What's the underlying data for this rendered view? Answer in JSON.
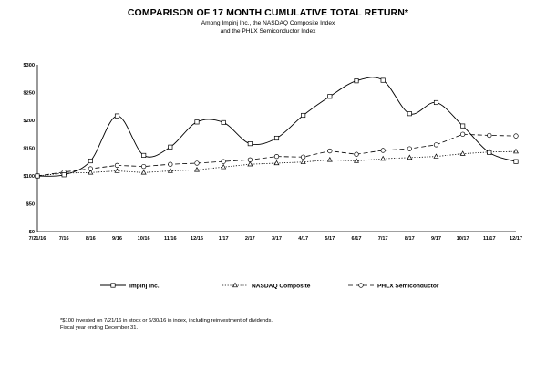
{
  "header": {
    "title": "COMPARISON OF 17 MONTH CUMULATIVE TOTAL RETURN*",
    "subtitle_line1": "Among Impinj Inc., the NASDAQ Composite Index",
    "subtitle_line2": "and the PHLX Semiconductor Index"
  },
  "footnote": {
    "line1": "*$100 invested on 7/21/16 in stock or 6/30/16 in index, including reinvestment of dividends.",
    "line2": "Fiscal year ending December 31."
  },
  "chart_data": {
    "type": "line",
    "title": "COMPARISON OF 17 MONTH CUMULATIVE TOTAL RETURN*",
    "categories": [
      "7/21/16",
      "7/16",
      "8/16",
      "9/16",
      "10/16",
      "11/16",
      "12/16",
      "1/17",
      "2/17",
      "3/17",
      "4/17",
      "5/17",
      "6/17",
      "7/17",
      "8/17",
      "9/17",
      "10/17",
      "11/17",
      "12/17"
    ],
    "y_tick_labels": [
      "$0",
      "$50",
      "$100",
      "$150",
      "$200",
      "$250",
      "$300"
    ],
    "ylim": [
      0,
      300
    ],
    "grid": false,
    "legend_position": "bottom",
    "series": [
      {
        "name": "Impinj Inc.",
        "marker": "square",
        "line_style": "solid",
        "smooth": true,
        "values": [
          100,
          102,
          127,
          208,
          137,
          152,
          197,
          196,
          158,
          168,
          209,
          243,
          271,
          272,
          212,
          232,
          190,
          142,
          126
        ]
      },
      {
        "name": "NASDAQ Composite",
        "marker": "triangle",
        "line_style": "dotted",
        "smooth": false,
        "values": [
          100,
          105,
          106,
          109,
          106,
          109,
          111,
          116,
          121,
          123,
          125,
          129,
          127,
          131,
          133,
          135,
          140,
          143,
          144
        ]
      },
      {
        "name": "PHLX Semiconductor",
        "marker": "circle",
        "line_style": "dashed",
        "smooth": false,
        "values": [
          100,
          107,
          113,
          119,
          117,
          121,
          123,
          126,
          129,
          135,
          134,
          145,
          139,
          146,
          149,
          156,
          175,
          173,
          172
        ]
      }
    ]
  }
}
